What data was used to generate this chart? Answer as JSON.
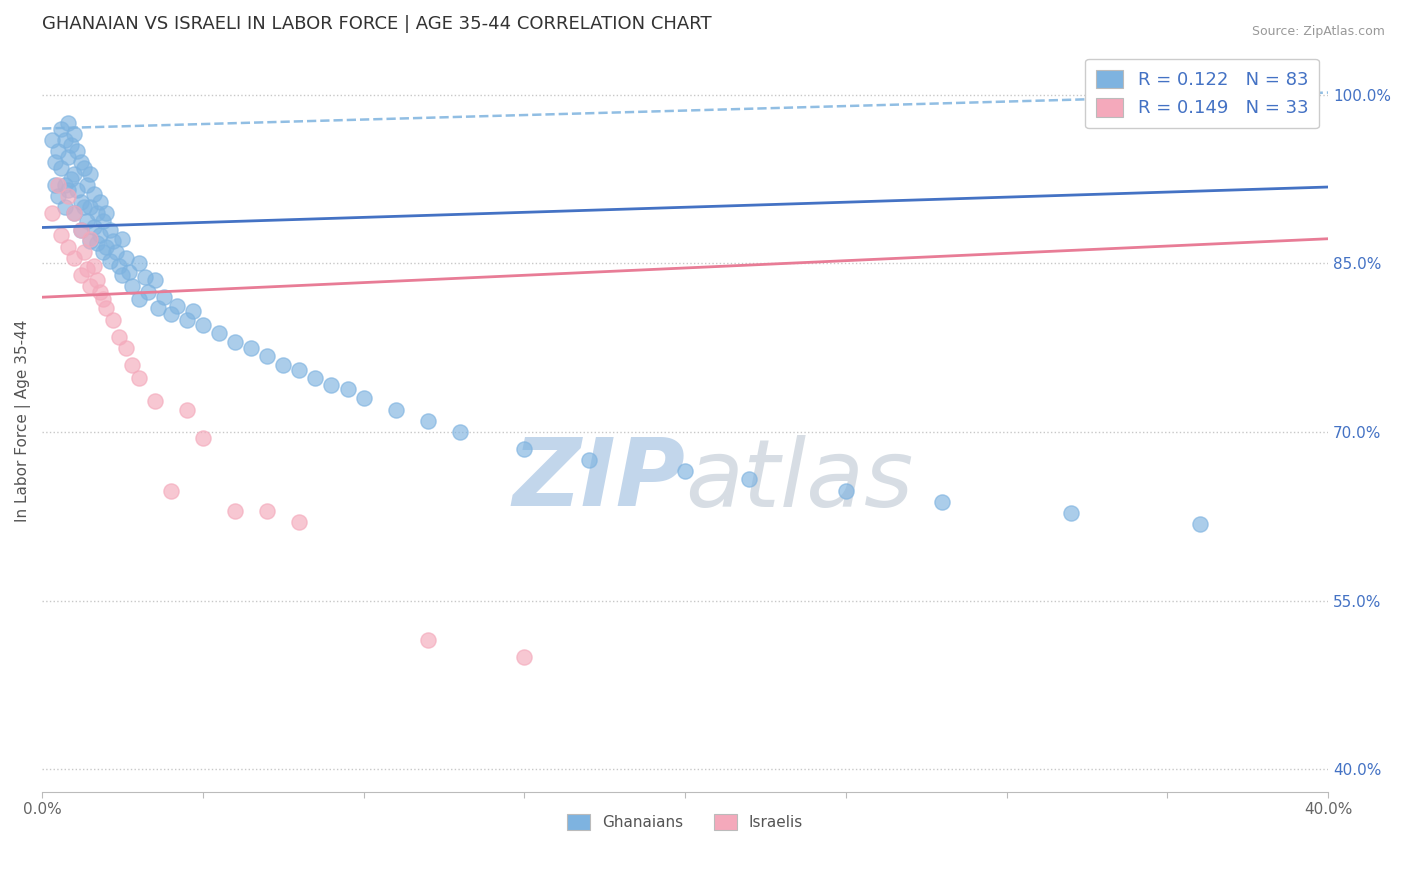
{
  "title": "GHANAIAN VS ISRAELI IN LABOR FORCE | AGE 35-44 CORRELATION CHART",
  "source_text": "Source: ZipAtlas.com",
  "ylabel": "In Labor Force | Age 35-44",
  "xlim": [
    0.0,
    0.4
  ],
  "ylim": [
    0.38,
    1.04
  ],
  "yticks_right": [
    0.4,
    0.55,
    0.7,
    0.85,
    1.0
  ],
  "ytick_right_labels": [
    "40.0%",
    "55.0%",
    "70.0%",
    "85.0%",
    "100.0%"
  ],
  "legend_r_blue": "R = 0.122",
  "legend_n_blue": "N = 83",
  "legend_r_pink": "R = 0.149",
  "legend_n_pink": "N = 33",
  "blue_color": "#7eb3e0",
  "pink_color": "#f4a9bb",
  "trend_blue_solid_color": "#4472c4",
  "trend_blue_dash_color": "#7eb3df",
  "trend_pink_color": "#e87c96",
  "label_color": "#4472c4",
  "watermark_color": "#d5e5f2",
  "background_color": "#ffffff",
  "trend_blue_solid_y0": 0.882,
  "trend_blue_solid_y1": 0.918,
  "trend_blue_dash_y0": 0.97,
  "trend_blue_dash_y1": 1.002,
  "trend_pink_y0": 0.82,
  "trend_pink_y1": 0.872,
  "ghanaian_x": [
    0.003,
    0.004,
    0.004,
    0.005,
    0.005,
    0.006,
    0.006,
    0.007,
    0.007,
    0.007,
    0.008,
    0.008,
    0.008,
    0.009,
    0.009,
    0.01,
    0.01,
    0.01,
    0.011,
    0.011,
    0.012,
    0.012,
    0.012,
    0.013,
    0.013,
    0.014,
    0.014,
    0.015,
    0.015,
    0.015,
    0.016,
    0.016,
    0.017,
    0.017,
    0.018,
    0.018,
    0.019,
    0.019,
    0.02,
    0.02,
    0.021,
    0.021,
    0.022,
    0.023,
    0.024,
    0.025,
    0.025,
    0.026,
    0.027,
    0.028,
    0.03,
    0.03,
    0.032,
    0.033,
    0.035,
    0.036,
    0.038,
    0.04,
    0.042,
    0.045,
    0.047,
    0.05,
    0.055,
    0.06,
    0.065,
    0.07,
    0.075,
    0.08,
    0.085,
    0.09,
    0.095,
    0.1,
    0.11,
    0.12,
    0.13,
    0.15,
    0.17,
    0.2,
    0.22,
    0.25,
    0.28,
    0.32,
    0.36
  ],
  "ghanaian_y": [
    0.96,
    0.94,
    0.92,
    0.95,
    0.91,
    0.97,
    0.935,
    0.96,
    0.92,
    0.9,
    0.975,
    0.945,
    0.915,
    0.955,
    0.925,
    0.965,
    0.93,
    0.895,
    0.95,
    0.915,
    0.94,
    0.905,
    0.88,
    0.935,
    0.9,
    0.92,
    0.888,
    0.93,
    0.9,
    0.87,
    0.912,
    0.882,
    0.895,
    0.868,
    0.905,
    0.875,
    0.888,
    0.86,
    0.895,
    0.865,
    0.88,
    0.852,
    0.87,
    0.86,
    0.848,
    0.872,
    0.84,
    0.855,
    0.842,
    0.83,
    0.85,
    0.818,
    0.838,
    0.825,
    0.835,
    0.81,
    0.82,
    0.805,
    0.812,
    0.8,
    0.808,
    0.795,
    0.788,
    0.78,
    0.775,
    0.768,
    0.76,
    0.755,
    0.748,
    0.742,
    0.738,
    0.73,
    0.72,
    0.71,
    0.7,
    0.685,
    0.675,
    0.665,
    0.658,
    0.648,
    0.638,
    0.628,
    0.618
  ],
  "israeli_x": [
    0.003,
    0.005,
    0.006,
    0.008,
    0.008,
    0.01,
    0.01,
    0.012,
    0.012,
    0.013,
    0.014,
    0.015,
    0.015,
    0.016,
    0.017,
    0.018,
    0.019,
    0.02,
    0.022,
    0.024,
    0.026,
    0.028,
    0.03,
    0.035,
    0.04,
    0.045,
    0.05,
    0.06,
    0.07,
    0.08,
    0.12,
    0.15,
    0.34
  ],
  "israeli_y": [
    0.895,
    0.92,
    0.875,
    0.91,
    0.865,
    0.895,
    0.855,
    0.88,
    0.84,
    0.86,
    0.845,
    0.872,
    0.83,
    0.848,
    0.835,
    0.825,
    0.818,
    0.81,
    0.8,
    0.785,
    0.775,
    0.76,
    0.748,
    0.728,
    0.648,
    0.72,
    0.695,
    0.63,
    0.63,
    0.62,
    0.515,
    0.5,
    0.995
  ]
}
